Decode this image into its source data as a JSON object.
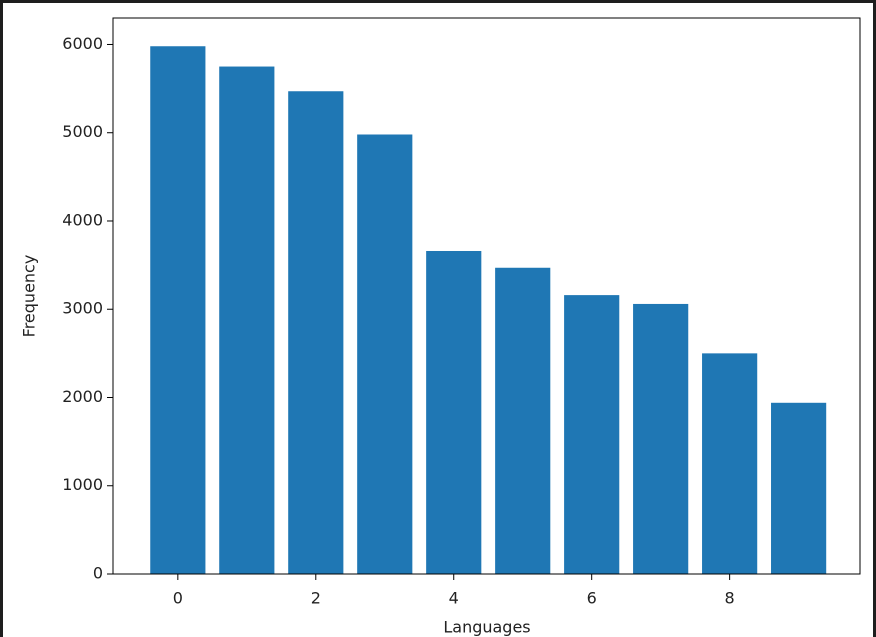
{
  "chart_data": {
    "type": "bar",
    "x": [
      0,
      1,
      2,
      3,
      4,
      5,
      6,
      7,
      8,
      9
    ],
    "values": [
      5980,
      5750,
      5470,
      4980,
      3660,
      3470,
      3160,
      3060,
      2500,
      1940
    ],
    "color": "#1f77b4",
    "xlabel": "Languages",
    "ylabel": "Frequency",
    "xlim": [
      -0.94,
      9.89
    ],
    "xticks": [
      0,
      2,
      4,
      6,
      8
    ],
    "ylim": [
      0,
      6300
    ],
    "yticks": [
      0,
      1000,
      2000,
      3000,
      4000,
      5000,
      6000
    ],
    "bar_width": 0.8
  }
}
